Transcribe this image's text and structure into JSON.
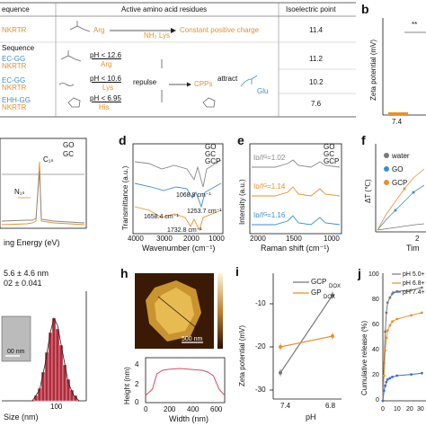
{
  "table": {
    "col_sequence": "equence",
    "col_residues": "Active amino acid residues",
    "col_pi": "Isoelectric point",
    "row1": {
      "seq": "NKRTR",
      "res_arg": "Arg",
      "res_lys": "NH₂ Lys",
      "effect": "Constant positive charge",
      "pi": "11.4"
    },
    "row_label": "Sequence",
    "row2": {
      "seq1": "EC-GG",
      "seq2": "NKRTR",
      "ph": "pH < 12.6",
      "ph_res": "Arg",
      "pi": "11.2"
    },
    "row3": {
      "seq1": "EC-GG",
      "seq2": "NKRTR",
      "ph": "pH < 10.6",
      "ph_res": "Lys",
      "repulse": "repulse",
      "cpps": "CPPs",
      "attract": "attract",
      "glu": "Glu",
      "pi": "10.2"
    },
    "row4": {
      "seq1": "EHH-GG",
      "seq2": "NKRTR",
      "ph": "pH < 6.95",
      "ph_res": "His",
      "pi": "7.6"
    }
  },
  "panel_b": {
    "letter": "b",
    "ylabel": "Zeta potential (mV)",
    "xtick": "7.4",
    "sig": "**"
  },
  "panel_c": {
    "legend": [
      "GO",
      "GC"
    ],
    "peak_c": "C₁ₛ",
    "peak_n": "N₁ₛ",
    "xlabel": "ing Energy (eV)"
  },
  "panel_d": {
    "letter": "d",
    "legend": [
      "GO",
      "GC",
      "GCP"
    ],
    "ylabel": "Transmittance (a.u.)",
    "xlabel": "Wavenumber (cm⁻¹)",
    "xticks": [
      "4000",
      "3000",
      "2000",
      "1000"
    ],
    "annotations": [
      "1068.8 cm⁻¹",
      "1658.4 cm⁻¹",
      "1253.7 cm⁻¹",
      "1732.8 cm⁻¹"
    ]
  },
  "panel_e": {
    "letter": "e",
    "legend": [
      "GO",
      "GC",
      "GCP"
    ],
    "ylabel": "Intensity (a.u.)",
    "xlabel": "Raman shift (cm⁻¹)",
    "xticks": [
      "2000",
      "1500",
      "1000"
    ],
    "ratios": [
      "Iᴅ/Iᴳ=1.02",
      "Iᴅ/Iᴳ=1.14",
      "Iᴅ/Iᴳ=1.16"
    ]
  },
  "panel_f": {
    "letter": "f",
    "legend": [
      "water",
      "GO",
      "GCP"
    ],
    "ylabel": "ΔT (℃)",
    "xtick": "2",
    "xlabel": "Tim"
  },
  "panel_g": {
    "size1": "5.6 ± 4.6 nm",
    "size2": "02 ± 0.041",
    "scale": "00 nm",
    "xtick": "100",
    "xlabel": "Size (nm)"
  },
  "panel_h": {
    "letter": "h",
    "scale": "500 nm",
    "ylabel": "Height (nm)",
    "yticks": [
      "4",
      "2",
      "0"
    ],
    "xticks": [
      "0",
      "200",
      "400",
      "600"
    ],
    "xlabel": "Width (nm)"
  },
  "panel_i": {
    "letter": "i",
    "ylabel": "Zeta potential (mV)",
    "xlabel": "pH",
    "yticks": [
      "-10",
      "-20",
      "-30"
    ],
    "xticks": [
      "7.4",
      "6.8"
    ],
    "legend": [
      "GCP",
      "GP"
    ],
    "legend_sub": "DOX"
  },
  "panel_j": {
    "letter": "j",
    "ylabel": "Cumulative release (%)",
    "yticks": [
      "100",
      "80",
      "60",
      "40",
      "20",
      "0"
    ],
    "xticks": [
      "0",
      "10",
      "20",
      "30"
    ],
    "legend": [
      "pH 5.0+",
      "pH 6.8+",
      "pH 7.4+"
    ]
  },
  "chart_data": [
    {
      "type": "line",
      "title": "",
      "xlabel": "pH",
      "ylabel": "Zeta potential (mV)",
      "categories": [
        "7.4",
        "6.8"
      ],
      "ylim": [
        -30,
        -5
      ],
      "series": [
        {
          "name": "GCP",
          "values": [
            -26,
            -8
          ],
          "color": "#777777"
        },
        {
          "name": "GP",
          "values": [
            -20,
            -17.5
          ],
          "color": "#e8902a"
        }
      ]
    },
    {
      "type": "line",
      "title": "",
      "xlabel": "",
      "ylabel": "Cumulative release (%)",
      "xlim": [
        0,
        35
      ],
      "ylim": [
        0,
        100
      ],
      "series": [
        {
          "name": "pH 5.0+",
          "color": "#777777",
          "x": [
            0,
            1,
            2,
            3,
            4,
            6,
            8,
            12,
            24,
            33
          ],
          "y": [
            0,
            30,
            55,
            70,
            78,
            82,
            85,
            87,
            88,
            90
          ]
        },
        {
          "name": "pH 6.8+",
          "color": "#e8902a",
          "x": [
            0,
            1,
            2,
            3,
            4,
            6,
            8,
            12,
            24,
            33
          ],
          "y": [
            0,
            20,
            40,
            50,
            56,
            60,
            63,
            65,
            68,
            70
          ]
        },
        {
          "name": "pH 7.4+",
          "color": "#3a6fd4",
          "x": [
            0,
            1,
            2,
            3,
            4,
            6,
            8,
            12,
            24,
            33
          ],
          "y": [
            0,
            8,
            12,
            15,
            17,
            18,
            19,
            20,
            21,
            22
          ]
        }
      ]
    },
    {
      "type": "line",
      "title": "",
      "xlabel": "Width (nm)",
      "ylabel": "Height (nm)",
      "xlim": [
        0,
        700
      ],
      "ylim": [
        0,
        5
      ],
      "series": [
        {
          "name": "",
          "color": "#d84a6a",
          "x": [
            0,
            60,
            100,
            150,
            200,
            300,
            400,
            500,
            550,
            600,
            650,
            700
          ],
          "y": [
            0.8,
            1.5,
            3.2,
            3.6,
            3.7,
            3.8,
            3.7,
            3.6,
            3.4,
            3.0,
            1.5,
            0.8
          ]
        }
      ]
    }
  ]
}
